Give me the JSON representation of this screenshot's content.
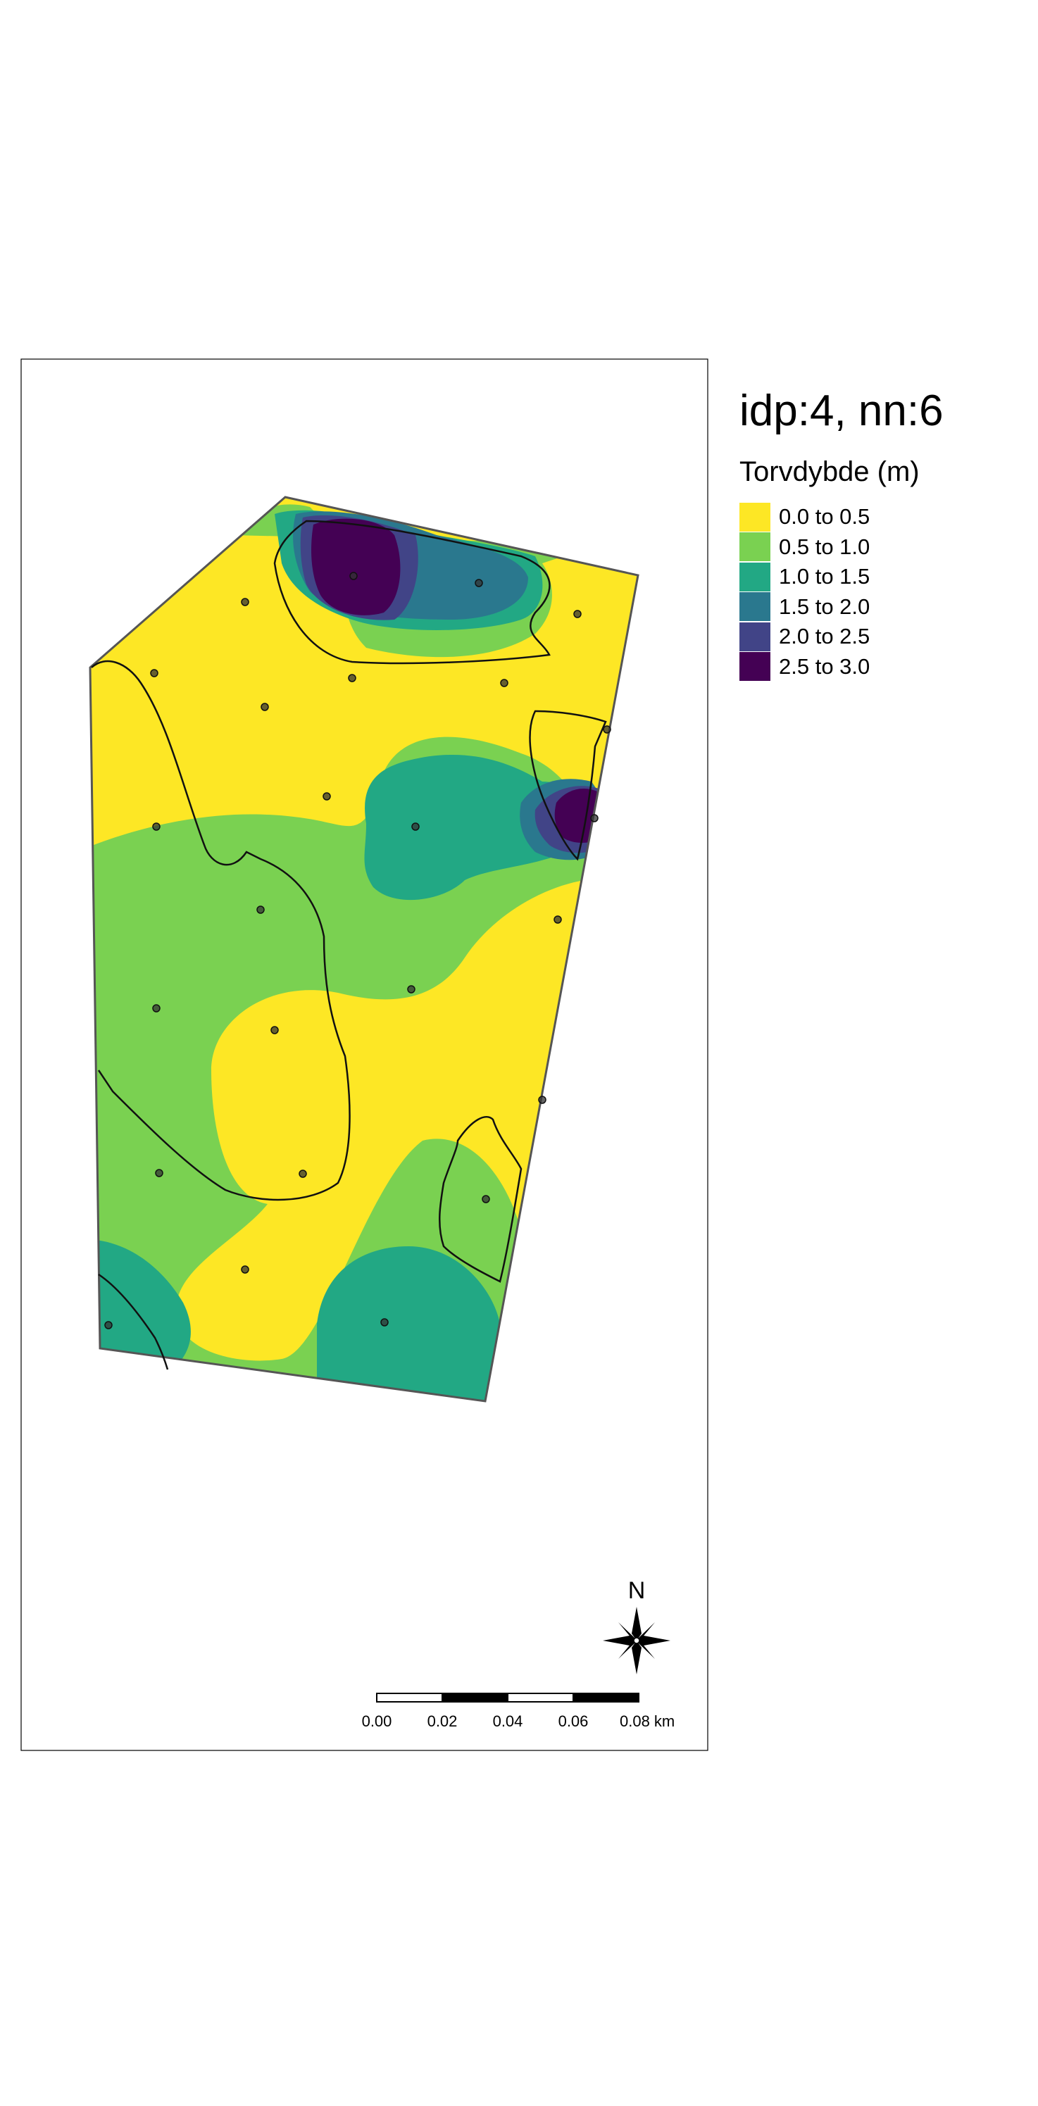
{
  "map": {
    "title": "idp:4, nn:6",
    "legend": {
      "title": "Torvdybde (m)",
      "classes": [
        {
          "label": "0.0 to 0.5",
          "color": "#FDE725"
        },
        {
          "label": "0.5 to 1.0",
          "color": "#7AD151"
        },
        {
          "label": "1.0 to 1.5",
          "color": "#22A884"
        },
        {
          "label": "1.5 to 2.0",
          "color": "#2A788E"
        },
        {
          "label": "2.0 to 2.5",
          "color": "#414487"
        },
        {
          "label": "2.5 to 3.0",
          "color": "#440154"
        }
      ]
    },
    "scale_bar": {
      "ticks": [
        "0.00",
        "0.02",
        "0.04",
        "0.06",
        "0.08 km"
      ]
    },
    "north_arrow": {
      "label": "N"
    },
    "sample_points_count": 23
  }
}
